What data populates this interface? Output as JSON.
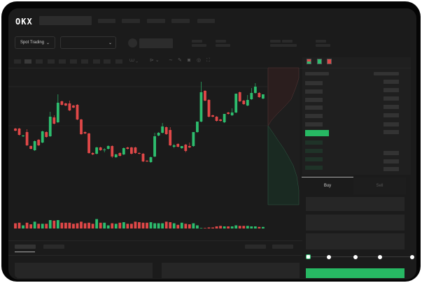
{
  "header": {
    "logo": "OKX"
  },
  "market": {
    "mode_label": "Spot Trading",
    "pair_placeholder": ""
  },
  "trade": {
    "tabs": [
      "Buy",
      "Sell"
    ],
    "slider_position": 0,
    "slider_stops": [
      0,
      25,
      50,
      75,
      100
    ]
  },
  "colors": {
    "up": "#2dbd6e",
    "down": "#e04848",
    "background": "#1b1b1b",
    "accent": "#27b863"
  },
  "icons": [
    "chevron-down-icon",
    "indicator-icon",
    "drawing-line-icon",
    "pencil-icon",
    "camera-icon",
    "settings-icon",
    "fullscreen-icon",
    "orderbook-both-icon",
    "orderbook-bids-icon",
    "orderbook-asks-icon"
  ],
  "chart_data": {
    "type": "candlestick",
    "candles_ohlc": [
      [
        58,
        59,
        54,
        55
      ],
      [
        58,
        59,
        48,
        49
      ],
      [
        47,
        49,
        46,
        48
      ],
      [
        53,
        57,
        33,
        34
      ],
      [
        33,
        34,
        28,
        29
      ],
      [
        27,
        41,
        26,
        40
      ],
      [
        42,
        43,
        33,
        34
      ],
      [
        38,
        55,
        37,
        54
      ],
      [
        53,
        54,
        45,
        46
      ],
      [
        47,
        82,
        46,
        75
      ],
      [
        74,
        77,
        64,
        65
      ],
      [
        67,
        107,
        66,
        95
      ],
      [
        97,
        98,
        91,
        92
      ],
      [
        94,
        95,
        90,
        91
      ],
      [
        94,
        98,
        83,
        84
      ],
      [
        91,
        92,
        87,
        88
      ],
      [
        92,
        93,
        70,
        71
      ],
      [
        71,
        72,
        49,
        50
      ],
      [
        53,
        54,
        50,
        51
      ],
      [
        51,
        52,
        22,
        23
      ],
      [
        23,
        24,
        20,
        21
      ],
      [
        22,
        32,
        21,
        31
      ],
      [
        31,
        32,
        26,
        27
      ],
      [
        27,
        30,
        24,
        28
      ],
      [
        29,
        34,
        28,
        33
      ],
      [
        33,
        34,
        16,
        18
      ],
      [
        17,
        22,
        16,
        21
      ],
      [
        23,
        24,
        18,
        19
      ],
      [
        21,
        31,
        20,
        30
      ],
      [
        31,
        32,
        28,
        29
      ],
      [
        31,
        32,
        21,
        22
      ],
      [
        31,
        32,
        22,
        23
      ],
      [
        23,
        24,
        21,
        22
      ],
      [
        22,
        23,
        10,
        11
      ],
      [
        12,
        13,
        10,
        11
      ],
      [
        10,
        18,
        9,
        17
      ],
      [
        18,
        52,
        17,
        47
      ],
      [
        48,
        53,
        47,
        52
      ],
      [
        52,
        66,
        51,
        61
      ],
      [
        60,
        61,
        49,
        50
      ],
      [
        56,
        60,
        33,
        34
      ],
      [
        32,
        36,
        30,
        34
      ],
      [
        36,
        37,
        31,
        32
      ],
      [
        30,
        33,
        29,
        33
      ],
      [
        35,
        36,
        24,
        26
      ],
      [
        33,
        38,
        30,
        31
      ],
      [
        33,
        53,
        32,
        53
      ],
      [
        53,
        68,
        52,
        68
      ],
      [
        68,
        125,
        67,
        110
      ],
      [
        112,
        113,
        97,
        98
      ],
      [
        99,
        100,
        74,
        75
      ],
      [
        77,
        78,
        74,
        75
      ],
      [
        75,
        76,
        68,
        69
      ],
      [
        71,
        72,
        68,
        69
      ],
      [
        67,
        79,
        66,
        79
      ],
      [
        81,
        82,
        78,
        79
      ],
      [
        77,
        87,
        76,
        81
      ],
      [
        81,
        108,
        80,
        108
      ],
      [
        110,
        111,
        96,
        97
      ],
      [
        98,
        99,
        92,
        93
      ],
      [
        91,
        106,
        90,
        99
      ],
      [
        100,
        116,
        99,
        109
      ],
      [
        109,
        123,
        108,
        118
      ],
      [
        109,
        110,
        102,
        103
      ],
      [
        101,
        107,
        100,
        107
      ]
    ],
    "volumes": [
      10,
      11,
      6,
      11,
      8,
      13,
      9,
      9,
      9,
      16,
      15,
      16,
      11,
      11,
      11,
      9,
      10,
      13,
      10,
      11,
      9,
      18,
      11,
      11,
      6,
      10,
      9,
      11,
      12,
      9,
      9,
      13,
      12,
      11,
      11,
      12,
      10,
      10,
      10,
      13,
      12,
      10,
      7,
      11,
      9,
      8,
      10,
      6,
      1,
      1,
      2,
      2,
      4,
      5,
      4,
      4,
      4,
      6,
      5,
      5,
      5,
      4,
      4,
      3,
      3
    ],
    "price_range": [
      0,
      130
    ]
  }
}
